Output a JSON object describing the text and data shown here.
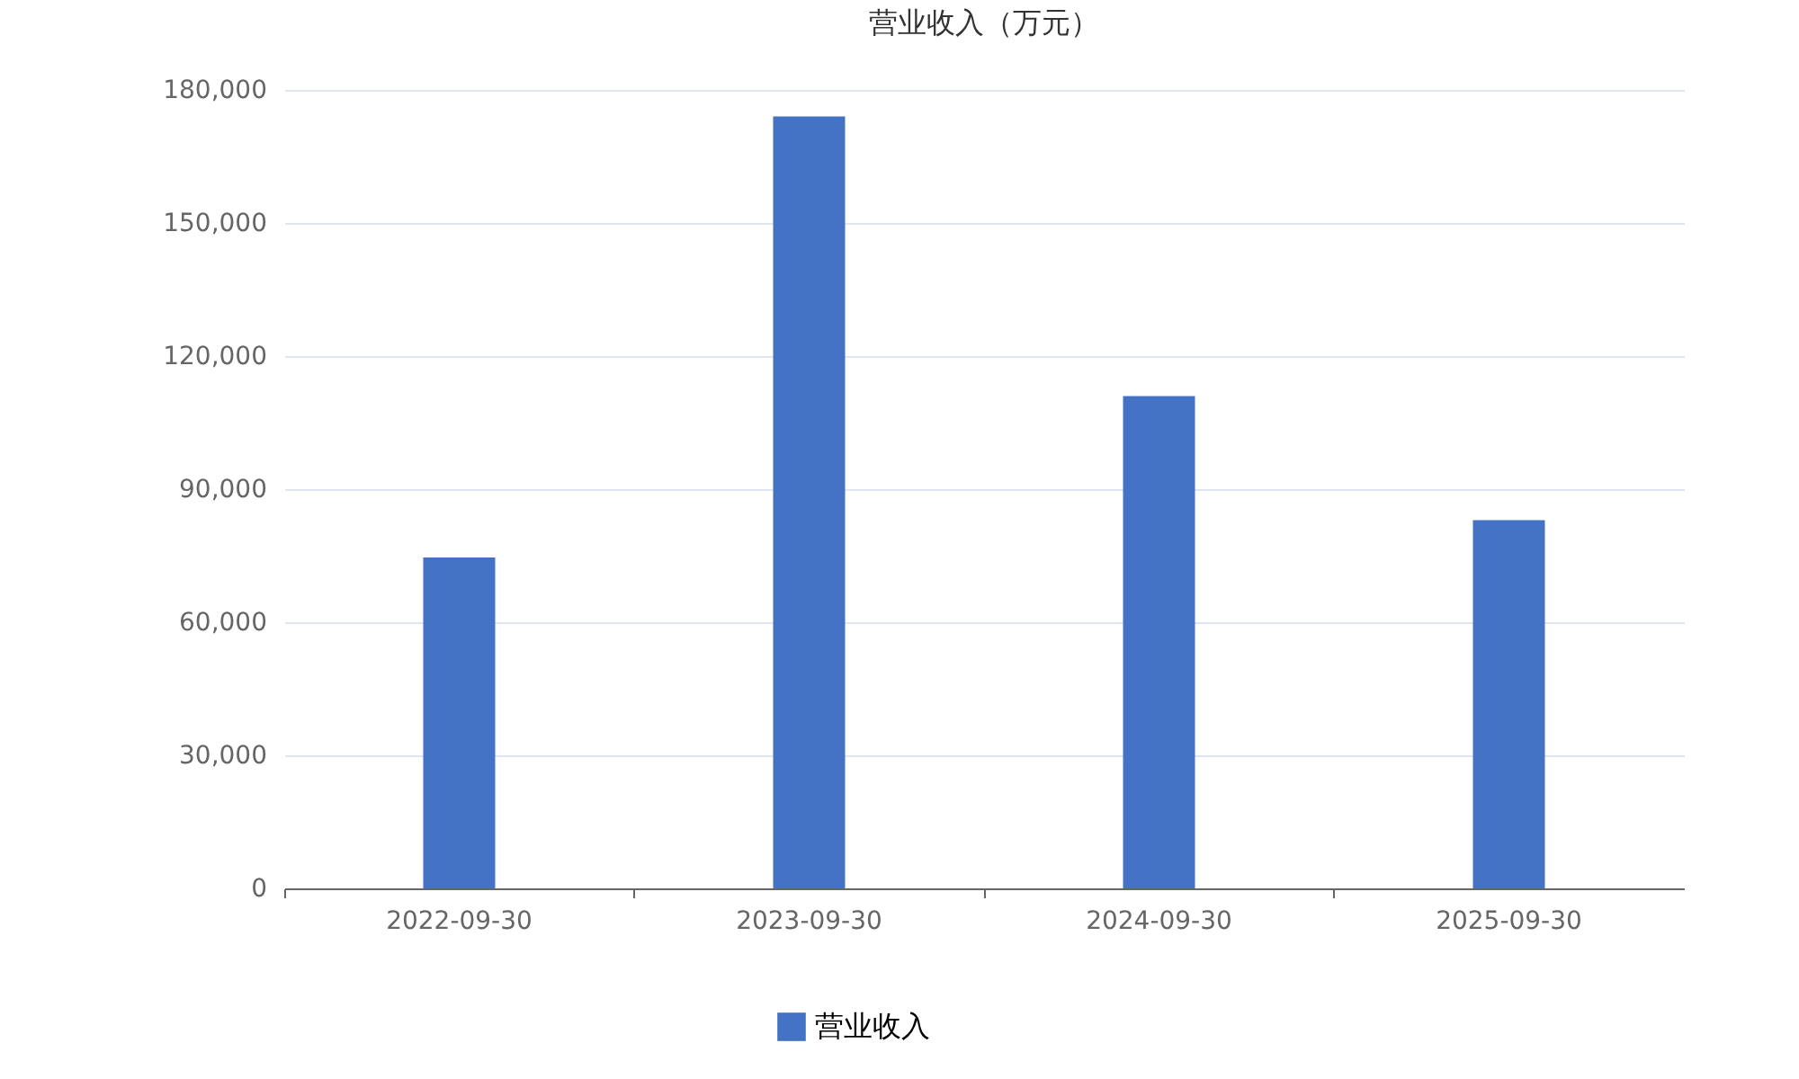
{
  "chart_data": {
    "type": "bar",
    "title": "营业收入（万元）",
    "categories": [
      "2022-09-30",
      "2023-09-30",
      "2024-09-30",
      "2025-09-30"
    ],
    "series": [
      {
        "name": "营业收入",
        "color": "#4472c4",
        "values": [
          74600,
          174000,
          111000,
          83000
        ]
      }
    ],
    "ylim": [
      0,
      180000
    ],
    "yticks": [
      0,
      {
        "value": 30000,
        "label": "30,000"
      },
      {
        "value": 60000,
        "label": "60,000"
      },
      {
        "value": 90000,
        "label": "90,000"
      },
      {
        "value": 120000,
        "label": "120,000"
      },
      {
        "value": 150000,
        "label": "150,000"
      },
      {
        "value": 180000,
        "label": "180,000"
      }
    ],
    "grid": "y",
    "legend": "bottom"
  }
}
